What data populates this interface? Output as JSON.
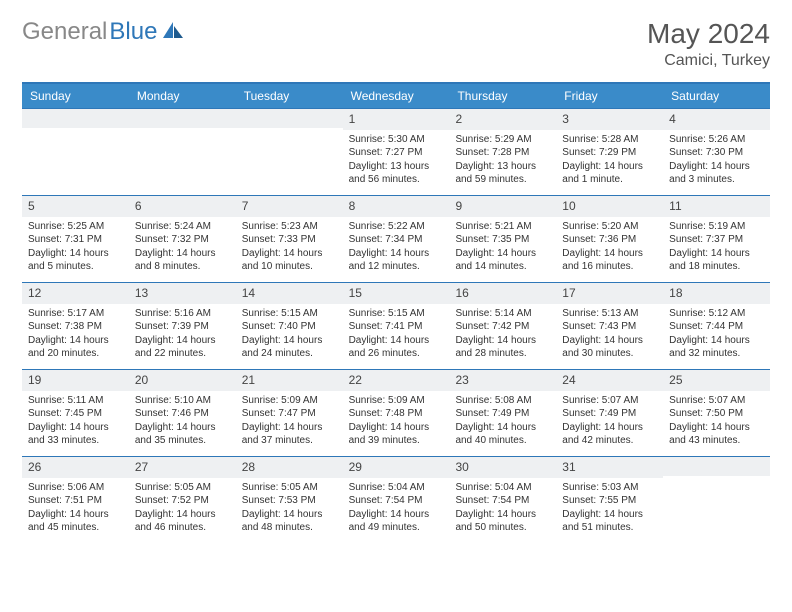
{
  "brand": {
    "part1": "General",
    "part2": "Blue"
  },
  "title": "May 2024",
  "location": "Camici, Turkey",
  "colors": {
    "header_bg": "#3a8bc9",
    "border": "#2e77b8",
    "daynum_bg": "#eef0f2",
    "text": "#333333",
    "title_text": "#555555",
    "logo_gray": "#888888"
  },
  "day_headers": [
    "Sunday",
    "Monday",
    "Tuesday",
    "Wednesday",
    "Thursday",
    "Friday",
    "Saturday"
  ],
  "weeks": [
    [
      {
        "n": "",
        "sunrise": "",
        "sunset": "",
        "daylight": ""
      },
      {
        "n": "",
        "sunrise": "",
        "sunset": "",
        "daylight": ""
      },
      {
        "n": "",
        "sunrise": "",
        "sunset": "",
        "daylight": ""
      },
      {
        "n": "1",
        "sunrise": "Sunrise: 5:30 AM",
        "sunset": "Sunset: 7:27 PM",
        "daylight": "Daylight: 13 hours and 56 minutes."
      },
      {
        "n": "2",
        "sunrise": "Sunrise: 5:29 AM",
        "sunset": "Sunset: 7:28 PM",
        "daylight": "Daylight: 13 hours and 59 minutes."
      },
      {
        "n": "3",
        "sunrise": "Sunrise: 5:28 AM",
        "sunset": "Sunset: 7:29 PM",
        "daylight": "Daylight: 14 hours and 1 minute."
      },
      {
        "n": "4",
        "sunrise": "Sunrise: 5:26 AM",
        "sunset": "Sunset: 7:30 PM",
        "daylight": "Daylight: 14 hours and 3 minutes."
      }
    ],
    [
      {
        "n": "5",
        "sunrise": "Sunrise: 5:25 AM",
        "sunset": "Sunset: 7:31 PM",
        "daylight": "Daylight: 14 hours and 5 minutes."
      },
      {
        "n": "6",
        "sunrise": "Sunrise: 5:24 AM",
        "sunset": "Sunset: 7:32 PM",
        "daylight": "Daylight: 14 hours and 8 minutes."
      },
      {
        "n": "7",
        "sunrise": "Sunrise: 5:23 AM",
        "sunset": "Sunset: 7:33 PM",
        "daylight": "Daylight: 14 hours and 10 minutes."
      },
      {
        "n": "8",
        "sunrise": "Sunrise: 5:22 AM",
        "sunset": "Sunset: 7:34 PM",
        "daylight": "Daylight: 14 hours and 12 minutes."
      },
      {
        "n": "9",
        "sunrise": "Sunrise: 5:21 AM",
        "sunset": "Sunset: 7:35 PM",
        "daylight": "Daylight: 14 hours and 14 minutes."
      },
      {
        "n": "10",
        "sunrise": "Sunrise: 5:20 AM",
        "sunset": "Sunset: 7:36 PM",
        "daylight": "Daylight: 14 hours and 16 minutes."
      },
      {
        "n": "11",
        "sunrise": "Sunrise: 5:19 AM",
        "sunset": "Sunset: 7:37 PM",
        "daylight": "Daylight: 14 hours and 18 minutes."
      }
    ],
    [
      {
        "n": "12",
        "sunrise": "Sunrise: 5:17 AM",
        "sunset": "Sunset: 7:38 PM",
        "daylight": "Daylight: 14 hours and 20 minutes."
      },
      {
        "n": "13",
        "sunrise": "Sunrise: 5:16 AM",
        "sunset": "Sunset: 7:39 PM",
        "daylight": "Daylight: 14 hours and 22 minutes."
      },
      {
        "n": "14",
        "sunrise": "Sunrise: 5:15 AM",
        "sunset": "Sunset: 7:40 PM",
        "daylight": "Daylight: 14 hours and 24 minutes."
      },
      {
        "n": "15",
        "sunrise": "Sunrise: 5:15 AM",
        "sunset": "Sunset: 7:41 PM",
        "daylight": "Daylight: 14 hours and 26 minutes."
      },
      {
        "n": "16",
        "sunrise": "Sunrise: 5:14 AM",
        "sunset": "Sunset: 7:42 PM",
        "daylight": "Daylight: 14 hours and 28 minutes."
      },
      {
        "n": "17",
        "sunrise": "Sunrise: 5:13 AM",
        "sunset": "Sunset: 7:43 PM",
        "daylight": "Daylight: 14 hours and 30 minutes."
      },
      {
        "n": "18",
        "sunrise": "Sunrise: 5:12 AM",
        "sunset": "Sunset: 7:44 PM",
        "daylight": "Daylight: 14 hours and 32 minutes."
      }
    ],
    [
      {
        "n": "19",
        "sunrise": "Sunrise: 5:11 AM",
        "sunset": "Sunset: 7:45 PM",
        "daylight": "Daylight: 14 hours and 33 minutes."
      },
      {
        "n": "20",
        "sunrise": "Sunrise: 5:10 AM",
        "sunset": "Sunset: 7:46 PM",
        "daylight": "Daylight: 14 hours and 35 minutes."
      },
      {
        "n": "21",
        "sunrise": "Sunrise: 5:09 AM",
        "sunset": "Sunset: 7:47 PM",
        "daylight": "Daylight: 14 hours and 37 minutes."
      },
      {
        "n": "22",
        "sunrise": "Sunrise: 5:09 AM",
        "sunset": "Sunset: 7:48 PM",
        "daylight": "Daylight: 14 hours and 39 minutes."
      },
      {
        "n": "23",
        "sunrise": "Sunrise: 5:08 AM",
        "sunset": "Sunset: 7:49 PM",
        "daylight": "Daylight: 14 hours and 40 minutes."
      },
      {
        "n": "24",
        "sunrise": "Sunrise: 5:07 AM",
        "sunset": "Sunset: 7:49 PM",
        "daylight": "Daylight: 14 hours and 42 minutes."
      },
      {
        "n": "25",
        "sunrise": "Sunrise: 5:07 AM",
        "sunset": "Sunset: 7:50 PM",
        "daylight": "Daylight: 14 hours and 43 minutes."
      }
    ],
    [
      {
        "n": "26",
        "sunrise": "Sunrise: 5:06 AM",
        "sunset": "Sunset: 7:51 PM",
        "daylight": "Daylight: 14 hours and 45 minutes."
      },
      {
        "n": "27",
        "sunrise": "Sunrise: 5:05 AM",
        "sunset": "Sunset: 7:52 PM",
        "daylight": "Daylight: 14 hours and 46 minutes."
      },
      {
        "n": "28",
        "sunrise": "Sunrise: 5:05 AM",
        "sunset": "Sunset: 7:53 PM",
        "daylight": "Daylight: 14 hours and 48 minutes."
      },
      {
        "n": "29",
        "sunrise": "Sunrise: 5:04 AM",
        "sunset": "Sunset: 7:54 PM",
        "daylight": "Daylight: 14 hours and 49 minutes."
      },
      {
        "n": "30",
        "sunrise": "Sunrise: 5:04 AM",
        "sunset": "Sunset: 7:54 PM",
        "daylight": "Daylight: 14 hours and 50 minutes."
      },
      {
        "n": "31",
        "sunrise": "Sunrise: 5:03 AM",
        "sunset": "Sunset: 7:55 PM",
        "daylight": "Daylight: 14 hours and 51 minutes."
      },
      {
        "n": "",
        "sunrise": "",
        "sunset": "",
        "daylight": ""
      }
    ]
  ]
}
